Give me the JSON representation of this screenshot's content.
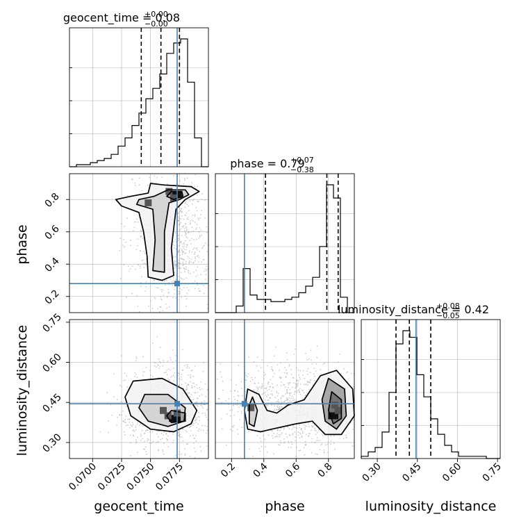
{
  "chart_data": {
    "type": "corner",
    "parameters": [
      "geocent_time",
      "phase",
      "luminosity_distance"
    ],
    "truth": {
      "geocent_time": 0.0773,
      "phase": 0.28,
      "luminosity_distance": 0.445
    },
    "truth_color": "#4682b4",
    "panels": {
      "geocent_time": {
        "title": {
          "label": "geocent_time = 0.08",
          "plus": "+0.00",
          "minus": "−0.00"
        },
        "range": [
          0.068,
          0.08
        ],
        "ticks": [
          0.07,
          0.0725,
          0.075,
          0.0775
        ],
        "tick_labels": [
          "0.0700",
          "0.0725",
          "0.0750",
          "0.0775"
        ],
        "quantiles": [
          0.0742,
          0.0759,
          0.0775
        ],
        "hist_edges_start": 0.068,
        "hist_bin_width": 0.0006,
        "hist_counts": [
          0,
          1,
          1,
          2,
          3,
          4,
          6,
          10,
          14,
          20,
          26,
          33,
          38,
          45,
          55,
          60,
          62,
          41,
          14,
          0
        ]
      },
      "phase": {
        "title": {
          "label": "phase = 0.79",
          "plus": "+0.07",
          "minus": "−0.38"
        },
        "range": [
          0.1,
          0.96
        ],
        "ticks": [
          0.2,
          0.4,
          0.6,
          0.8
        ],
        "tick_labels": [
          "0.2",
          "0.4",
          "0.6",
          "0.8"
        ],
        "quantiles": [
          0.41,
          0.79,
          0.86
        ],
        "hist_edges_start": 0.1,
        "hist_bin_width": 0.043,
        "hist_counts": [
          0,
          0,
          0,
          3,
          20,
          8,
          6,
          6,
          5,
          5,
          6,
          7,
          9,
          12,
          16,
          30,
          58,
          52,
          7,
          0
        ]
      },
      "luminosity_distance": {
        "title": {
          "label": "luminosity_distance = 0.42",
          "plus": "+0.08",
          "minus": "−0.05"
        },
        "range": [
          0.24,
          0.76
        ],
        "ticks": [
          0.3,
          0.45,
          0.6,
          0.75
        ],
        "tick_labels": [
          "0.30",
          "0.45",
          "0.60",
          "0.75"
        ],
        "quantiles": [
          0.37,
          0.42,
          0.5
        ],
        "hist_edges_start": 0.24,
        "hist_bin_width": 0.026,
        "hist_counts": [
          1,
          3,
          5,
          12,
          30,
          52,
          58,
          55,
          38,
          28,
          18,
          11,
          6,
          3,
          1,
          1,
          1,
          1,
          0,
          0
        ]
      }
    },
    "contours": {
      "phase_vs_geocent_time": {
        "levels": [
          [
            [
              0.0762,
              0.89
            ],
            [
              0.0785,
              0.88
            ],
            [
              0.0792,
              0.85
            ],
            [
              0.078,
              0.8
            ],
            [
              0.0772,
              0.74
            ],
            [
              0.0768,
              0.5
            ],
            [
              0.077,
              0.33
            ],
            [
              0.076,
              0.3
            ],
            [
              0.0748,
              0.32
            ],
            [
              0.0747,
              0.45
            ],
            [
              0.0744,
              0.6
            ],
            [
              0.074,
              0.72
            ],
            [
              0.0725,
              0.76
            ],
            [
              0.072,
              0.8
            ],
            [
              0.0733,
              0.82
            ],
            [
              0.0748,
              0.84
            ],
            [
              0.075,
              0.9
            ],
            [
              0.0762,
              0.89
            ]
          ],
          [
            [
              0.0765,
              0.86
            ],
            [
              0.078,
              0.86
            ],
            [
              0.0783,
              0.83
            ],
            [
              0.0775,
              0.8
            ],
            [
              0.0766,
              0.78
            ],
            [
              0.0762,
              0.6
            ],
            [
              0.0762,
              0.35
            ],
            [
              0.0752,
              0.36
            ],
            [
              0.0754,
              0.55
            ],
            [
              0.0752,
              0.74
            ],
            [
              0.0738,
              0.77
            ],
            [
              0.074,
              0.8
            ],
            [
              0.0753,
              0.82
            ],
            [
              0.0765,
              0.86
            ]
          ],
          [
            [
              0.0768,
              0.85
            ],
            [
              0.0777,
              0.85
            ],
            [
              0.0778,
              0.82
            ],
            [
              0.077,
              0.8
            ],
            [
              0.0764,
              0.82
            ],
            [
              0.0768,
              0.85
            ]
          ]
        ],
        "dense_cells": [
          [
            0.077,
            0.83
          ],
          [
            0.0774,
            0.83
          ],
          [
            0.077,
            0.81
          ],
          [
            0.0766,
            0.85
          ],
          [
            0.0748,
            0.78
          ]
        ]
      },
      "luminosity_distance_vs_geocent_time": {
        "levels": [
          [
            [
              0.0735,
              0.53
            ],
            [
              0.076,
              0.54
            ],
            [
              0.0778,
              0.5
            ],
            [
              0.079,
              0.42
            ],
            [
              0.0785,
              0.37
            ],
            [
              0.077,
              0.34
            ],
            [
              0.075,
              0.35
            ],
            [
              0.0733,
              0.4
            ],
            [
              0.0728,
              0.47
            ],
            [
              0.0735,
              0.53
            ]
          ],
          [
            [
              0.0745,
              0.48
            ],
            [
              0.0765,
              0.48
            ],
            [
              0.078,
              0.43
            ],
            [
              0.0779,
              0.38
            ],
            [
              0.0765,
              0.36
            ],
            [
              0.0748,
              0.38
            ],
            [
              0.074,
              0.43
            ],
            [
              0.0745,
              0.48
            ]
          ],
          [
            [
              0.0768,
              0.42
            ],
            [
              0.078,
              0.41
            ],
            [
              0.078,
              0.38
            ],
            [
              0.0768,
              0.375
            ],
            [
              0.0764,
              0.4
            ],
            [
              0.0768,
              0.42
            ]
          ]
        ],
        "dense_cells": [
          [
            0.0773,
            0.39
          ],
          [
            0.0769,
            0.39
          ],
          [
            0.0773,
            0.41
          ],
          [
            0.0765,
            0.4
          ],
          [
            0.0761,
            0.42
          ]
        ]
      },
      "luminosity_distance_vs_phase": {
        "levels": [
          [
            [
              0.3,
              0.5
            ],
            [
              0.37,
              0.48
            ],
            [
              0.42,
              0.42
            ],
            [
              0.48,
              0.41
            ],
            [
              0.55,
              0.44
            ],
            [
              0.65,
              0.46
            ],
            [
              0.75,
              0.55
            ],
            [
              0.85,
              0.57
            ],
            [
              0.95,
              0.5
            ],
            [
              0.96,
              0.4
            ],
            [
              0.88,
              0.33
            ],
            [
              0.78,
              0.33
            ],
            [
              0.7,
              0.38
            ],
            [
              0.6,
              0.37
            ],
            [
              0.45,
              0.35
            ],
            [
              0.38,
              0.34
            ],
            [
              0.3,
              0.35
            ],
            [
              0.28,
              0.42
            ],
            [
              0.3,
              0.5
            ]
          ],
          [
            [
              0.33,
              0.47
            ],
            [
              0.36,
              0.42
            ],
            [
              0.34,
              0.36
            ],
            [
              0.31,
              0.37
            ],
            [
              0.31,
              0.44
            ],
            [
              0.33,
              0.47
            ]
          ],
          [
            [
              0.8,
              0.54
            ],
            [
              0.9,
              0.5
            ],
            [
              0.91,
              0.4
            ],
            [
              0.85,
              0.35
            ],
            [
              0.78,
              0.38
            ],
            [
              0.76,
              0.46
            ],
            [
              0.8,
              0.54
            ]
          ],
          [
            [
              0.82,
              0.49
            ],
            [
              0.88,
              0.46
            ],
            [
              0.88,
              0.39
            ],
            [
              0.83,
              0.37
            ],
            [
              0.8,
              0.42
            ],
            [
              0.82,
              0.49
            ]
          ]
        ],
        "dense_cells": [
          [
            0.84,
            0.4
          ],
          [
            0.82,
            0.4
          ],
          [
            0.86,
            0.42
          ],
          [
            0.84,
            0.44
          ],
          [
            0.32,
            0.43
          ]
        ]
      }
    },
    "axis_labels": {
      "x": [
        "geocent_time",
        "phase",
        "luminosity_distance"
      ],
      "y": [
        "phase",
        "luminosity_distance"
      ]
    },
    "grid": true
  }
}
